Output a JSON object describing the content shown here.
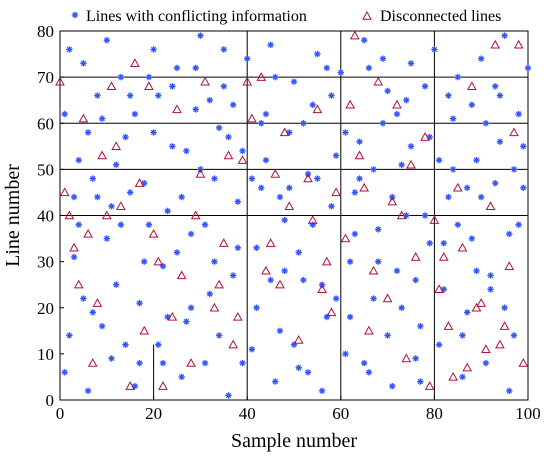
{
  "chart_data": {
    "type": "scatter",
    "xlabel": "Sample number",
    "ylabel": "Line number",
    "xlim": [
      0,
      100
    ],
    "ylim": [
      0,
      80
    ],
    "x_ticks": [
      "0",
      "20",
      "40",
      "60",
      "80",
      "100"
    ],
    "y_ticks": [
      "0",
      "10",
      "20",
      "30",
      "40",
      "50",
      "60",
      "70",
      "80"
    ],
    "grid": "partial lines at x=20,40,60,80 and y=40,50,60,70",
    "legend_position": "top",
    "colors": {
      "conflicting": "#3355ff",
      "disconnected": "#b0103a",
      "grid": "#000000"
    },
    "series": [
      {
        "name": "Lines with conflicting information",
        "marker": "asterisk",
        "points": [
          [
            1,
            6
          ],
          [
            2,
            14
          ],
          [
            3,
            31
          ],
          [
            4,
            52
          ],
          [
            5,
            73
          ],
          [
            6,
            2
          ],
          [
            7,
            19
          ],
          [
            8,
            44
          ],
          [
            9,
            61
          ],
          [
            10,
            78
          ],
          [
            11,
            9
          ],
          [
            12,
            25
          ],
          [
            13,
            38
          ],
          [
            14,
            57
          ],
          [
            15,
            66
          ],
          [
            16,
            3
          ],
          [
            17,
            21
          ],
          [
            18,
            47
          ],
          [
            19,
            70
          ],
          [
            20,
            76
          ],
          [
            21,
            12
          ],
          [
            22,
            29
          ],
          [
            23,
            41
          ],
          [
            24,
            55
          ],
          [
            25,
            72
          ],
          [
            26,
            5
          ],
          [
            27,
            17
          ],
          [
            28,
            36
          ],
          [
            29,
            63
          ],
          [
            30,
            79
          ],
          [
            31,
            8
          ],
          [
            32,
            23
          ],
          [
            33,
            48
          ],
          [
            34,
            59
          ],
          [
            35,
            68
          ],
          [
            36,
            1
          ],
          [
            37,
            27
          ],
          [
            38,
            43
          ],
          [
            39,
            54
          ],
          [
            40,
            74
          ],
          [
            41,
            11
          ],
          [
            42,
            33
          ],
          [
            43,
            46
          ],
          [
            44,
            62
          ],
          [
            45,
            77
          ],
          [
            46,
            4
          ],
          [
            47,
            15
          ],
          [
            48,
            39
          ],
          [
            49,
            58
          ],
          [
            50,
            69
          ],
          [
            51,
            7
          ],
          [
            52,
            26
          ],
          [
            53,
            49
          ],
          [
            54,
            64
          ],
          [
            55,
            75
          ],
          [
            56,
            2
          ],
          [
            57,
            18
          ],
          [
            58,
            42
          ],
          [
            59,
            53
          ],
          [
            60,
            71
          ],
          [
            61,
            10
          ],
          [
            62,
            30
          ],
          [
            63,
            45
          ],
          [
            64,
            56
          ],
          [
            65,
            78
          ],
          [
            66,
            6
          ],
          [
            67,
            22
          ],
          [
            68,
            37
          ],
          [
            69,
            60
          ],
          [
            70,
            67
          ],
          [
            71,
            3
          ],
          [
            72,
            28
          ],
          [
            73,
            51
          ],
          [
            74,
            65
          ],
          [
            75,
            73
          ],
          [
            76,
            9
          ],
          [
            77,
            16
          ],
          [
            78,
            40
          ],
          [
            79,
            57
          ],
          [
            80,
            76
          ],
          [
            81,
            12
          ],
          [
            82,
            24
          ],
          [
            83,
            44
          ],
          [
            84,
            61
          ],
          [
            85,
            70
          ],
          [
            86,
            5
          ],
          [
            87,
            19
          ],
          [
            88,
            35
          ],
          [
            89,
            52
          ],
          [
            90,
            74
          ],
          [
            91,
            8
          ],
          [
            92,
            27
          ],
          [
            93,
            47
          ],
          [
            94,
            66
          ],
          [
            95,
            79
          ],
          [
            96,
            2
          ],
          [
            97,
            14
          ],
          [
            98,
            38
          ],
          [
            99,
            55
          ],
          [
            100,
            72
          ],
          [
            3,
            44
          ],
          [
            5,
            22
          ],
          [
            8,
            66
          ],
          [
            10,
            35
          ],
          [
            12,
            51
          ],
          [
            14,
            12
          ],
          [
            16,
            62
          ],
          [
            18,
            30
          ],
          [
            20,
            58
          ],
          [
            22,
            8
          ],
          [
            24,
            68
          ],
          [
            26,
            44
          ],
          [
            28,
            20
          ],
          [
            30,
            50
          ],
          [
            32,
            65
          ],
          [
            34,
            14
          ],
          [
            36,
            57
          ],
          [
            38,
            33
          ],
          [
            42,
            20
          ],
          [
            44,
            52
          ],
          [
            46,
            70
          ],
          [
            48,
            28
          ],
          [
            50,
            12
          ],
          [
            52,
            60
          ],
          [
            54,
            38
          ],
          [
            56,
            25
          ],
          [
            58,
            66
          ],
          [
            62,
            18
          ],
          [
            64,
            48
          ],
          [
            66,
            72
          ],
          [
            68,
            30
          ],
          [
            70,
            14
          ],
          [
            72,
            62
          ],
          [
            74,
            40
          ],
          [
            76,
            26
          ],
          [
            78,
            68
          ],
          [
            82,
            34
          ],
          [
            84,
            50
          ],
          [
            86,
            14
          ],
          [
            88,
            64
          ],
          [
            90,
            44
          ],
          [
            92,
            24
          ],
          [
            94,
            56
          ],
          [
            96,
            36
          ],
          [
            98,
            62
          ],
          [
            2,
            76
          ],
          [
            6,
            58
          ],
          [
            15,
            45
          ],
          [
            25,
            32
          ],
          [
            35,
            76
          ],
          [
            45,
            26
          ],
          [
            55,
            48
          ],
          [
            65,
            8
          ],
          [
            75,
            55
          ],
          [
            85,
            38
          ],
          [
            95,
            20
          ],
          [
            4,
            38
          ],
          [
            13,
            70
          ],
          [
            23,
            18
          ],
          [
            33,
            30
          ],
          [
            43,
            60
          ],
          [
            53,
            6
          ],
          [
            63,
            36
          ],
          [
            73,
            20
          ],
          [
            83,
            66
          ],
          [
            93,
            68
          ],
          [
            7,
            48
          ],
          [
            17,
            8
          ],
          [
            27,
            54
          ],
          [
            37,
            64
          ],
          [
            47,
            44
          ],
          [
            57,
            72
          ],
          [
            67,
            50
          ],
          [
            77,
            4
          ],
          [
            87,
            46
          ],
          [
            97,
            50
          ],
          [
            1,
            62
          ],
          [
            11,
            42
          ],
          [
            21,
            66
          ],
          [
            31,
            38
          ],
          [
            41,
            48
          ],
          [
            51,
            32
          ],
          [
            61,
            58
          ],
          [
            71,
            44
          ],
          [
            81,
            52
          ],
          [
            91,
            60
          ],
          [
            9,
            16
          ],
          [
            19,
            38
          ],
          [
            29,
            72
          ],
          [
            39,
            8
          ],
          [
            49,
            46
          ],
          [
            59,
            22
          ],
          [
            69,
            74
          ],
          [
            79,
            34
          ],
          [
            89,
            28
          ],
          [
            99,
            46
          ]
        ]
      },
      {
        "name": "Disconnected lines",
        "marker": "triangle",
        "points": [
          [
            0,
            69
          ],
          [
            1,
            45
          ],
          [
            2,
            40
          ],
          [
            3,
            33
          ],
          [
            4,
            25
          ],
          [
            5,
            61
          ],
          [
            7,
            8
          ],
          [
            8,
            21
          ],
          [
            9,
            53
          ],
          [
            10,
            40
          ],
          [
            11,
            68
          ],
          [
            13,
            42
          ],
          [
            15,
            3
          ],
          [
            17,
            47
          ],
          [
            18,
            15
          ],
          [
            19,
            68
          ],
          [
            20,
            36
          ],
          [
            22,
            3
          ],
          [
            24,
            18
          ],
          [
            26,
            27
          ],
          [
            28,
            8
          ],
          [
            30,
            49
          ],
          [
            31,
            69
          ],
          [
            33,
            20
          ],
          [
            35,
            34
          ],
          [
            36,
            53
          ],
          [
            38,
            18
          ],
          [
            40,
            69
          ],
          [
            41,
            61
          ],
          [
            43,
            70
          ],
          [
            45,
            34
          ],
          [
            47,
            25
          ],
          [
            49,
            42
          ],
          [
            51,
            13
          ],
          [
            53,
            48
          ],
          [
            55,
            63
          ],
          [
            57,
            30
          ],
          [
            59,
            45
          ],
          [
            61,
            35
          ],
          [
            63,
            79
          ],
          [
            65,
            46
          ],
          [
            66,
            15
          ],
          [
            68,
            69
          ],
          [
            70,
            22
          ],
          [
            72,
            64
          ],
          [
            74,
            9
          ],
          [
            76,
            31
          ],
          [
            78,
            57
          ],
          [
            79,
            3
          ],
          [
            80,
            39
          ],
          [
            81,
            24
          ],
          [
            83,
            16
          ],
          [
            84,
            5
          ],
          [
            86,
            33
          ],
          [
            87,
            7
          ],
          [
            88,
            68
          ],
          [
            89,
            20
          ],
          [
            91,
            11
          ],
          [
            92,
            42
          ],
          [
            93,
            77
          ],
          [
            95,
            16
          ],
          [
            96,
            29
          ],
          [
            97,
            58
          ],
          [
            98,
            77
          ],
          [
            99,
            8
          ],
          [
            6,
            36
          ],
          [
            12,
            55
          ],
          [
            21,
            30
          ],
          [
            29,
            40
          ],
          [
            34,
            25
          ],
          [
            39,
            52
          ],
          [
            44,
            28
          ],
          [
            48,
            58
          ],
          [
            54,
            39
          ],
          [
            58,
            19
          ],
          [
            62,
            64
          ],
          [
            67,
            28
          ],
          [
            71,
            43
          ],
          [
            75,
            51
          ],
          [
            82,
            31
          ],
          [
            85,
            46
          ],
          [
            90,
            21
          ],
          [
            94,
            12
          ],
          [
            16,
            73
          ],
          [
            25,
            63
          ],
          [
            37,
            12
          ],
          [
            46,
            49
          ],
          [
            56,
            24
          ],
          [
            64,
            53
          ],
          [
            73,
            40
          ]
        ]
      }
    ]
  }
}
